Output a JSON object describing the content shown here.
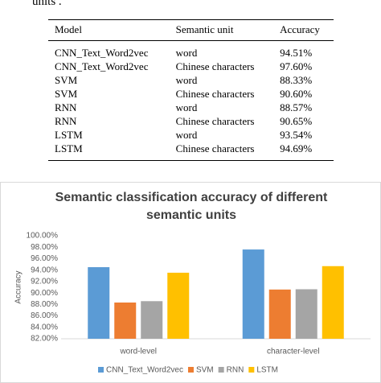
{
  "caption_fragment": "units .",
  "table": {
    "header": [
      "Model",
      "Semantic unit",
      "Accuracy"
    ],
    "rows": [
      [
        "CNN_Text_Word2vec",
        "word",
        "94.51%"
      ],
      [
        "CNN_Text_Word2vec",
        "Chinese characters",
        "97.60%"
      ],
      [
        "SVM",
        "word",
        "88.33%"
      ],
      [
        "SVM",
        "Chinese characters",
        "90.60%"
      ],
      [
        "RNN",
        "word",
        "88.57%"
      ],
      [
        "RNN",
        "Chinese characters",
        "90.65%"
      ],
      [
        "LSTM",
        "word",
        "93.54%"
      ],
      [
        "LSTM",
        "Chinese characters",
        "94.69%"
      ]
    ]
  },
  "chart_data": {
    "type": "bar",
    "title": "Semantic classification accuracy of different semantic units",
    "y_label": "Accuracy",
    "categories": [
      "word-level",
      "character-level"
    ],
    "series": [
      {
        "name": "CNN_Text_Word2vec",
        "color": "#5b9bd5",
        "values": [
          94.51,
          97.6
        ]
      },
      {
        "name": "SVM",
        "color": "#ed7d31",
        "values": [
          88.33,
          90.6
        ]
      },
      {
        "name": "RNN",
        "color": "#a5a5a5",
        "values": [
          88.57,
          90.65
        ]
      },
      {
        "name": "LSTM",
        "color": "#ffc000",
        "values": [
          93.54,
          94.69
        ]
      }
    ],
    "ylim": [
      82,
      100
    ],
    "yticks": [
      {
        "value": 82,
        "label": "82.00%"
      },
      {
        "value": 84,
        "label": "84.00%"
      },
      {
        "value": 86,
        "label": "86.00%"
      },
      {
        "value": 88,
        "label": "88.00%"
      },
      {
        "value": 90,
        "label": "90.00%"
      },
      {
        "value": 92,
        "label": "92.00%"
      },
      {
        "value": 94,
        "label": "94.00%"
      },
      {
        "value": 96,
        "label": "96.00%"
      },
      {
        "value": 98,
        "label": "98.00%"
      },
      {
        "value": 100,
        "label": "100.00%"
      }
    ],
    "grid": false,
    "legend": "bottom"
  }
}
